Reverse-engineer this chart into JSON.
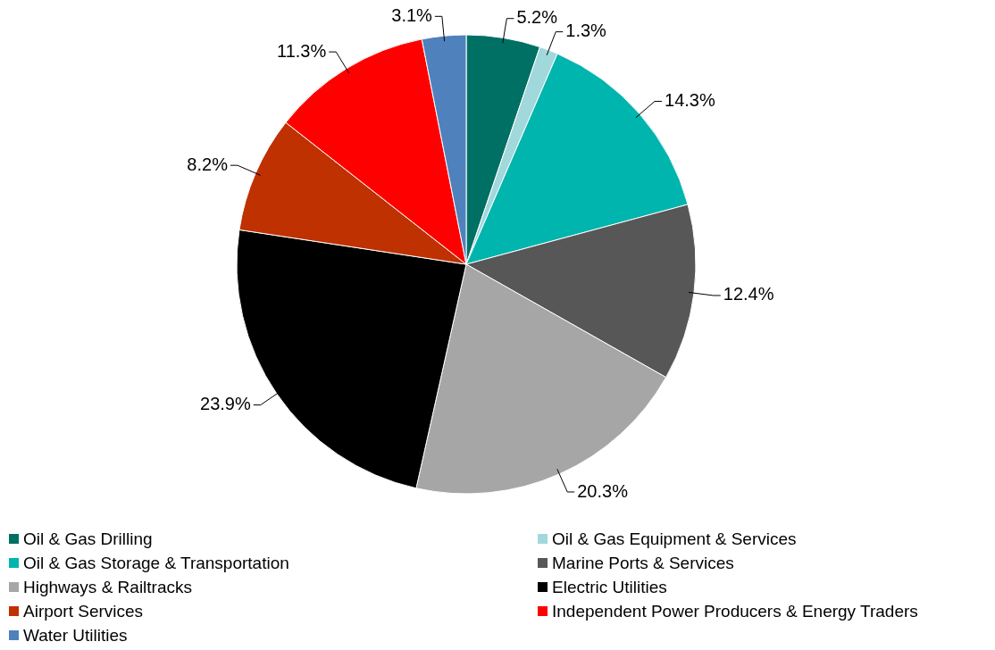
{
  "chart_data": {
    "type": "pie",
    "categories": [
      "Oil & Gas Drilling",
      "Oil & Gas Equipment & Services",
      "Oil & Gas Storage & Transportation",
      "Marine Ports & Services",
      "Highways & Railtracks",
      "Electric Utilities",
      "Airport Services",
      "Independent Power Producers & Energy Traders",
      "Water Utilities"
    ],
    "values": [
      5.2,
      1.3,
      14.3,
      12.4,
      20.3,
      23.9,
      8.2,
      11.3,
      3.1
    ],
    "value_labels": [
      "5.2%",
      "1.3%",
      "14.3%",
      "12.4%",
      "20.3%",
      "23.9%",
      "8.2%",
      "11.3%",
      "3.1%"
    ],
    "colors": [
      "#007064",
      "#a0d8dc",
      "#00b5ad",
      "#575757",
      "#a6a6a6",
      "#000000",
      "#bf3100",
      "#ff0000",
      "#4f81bd"
    ],
    "legend": "bottom"
  }
}
